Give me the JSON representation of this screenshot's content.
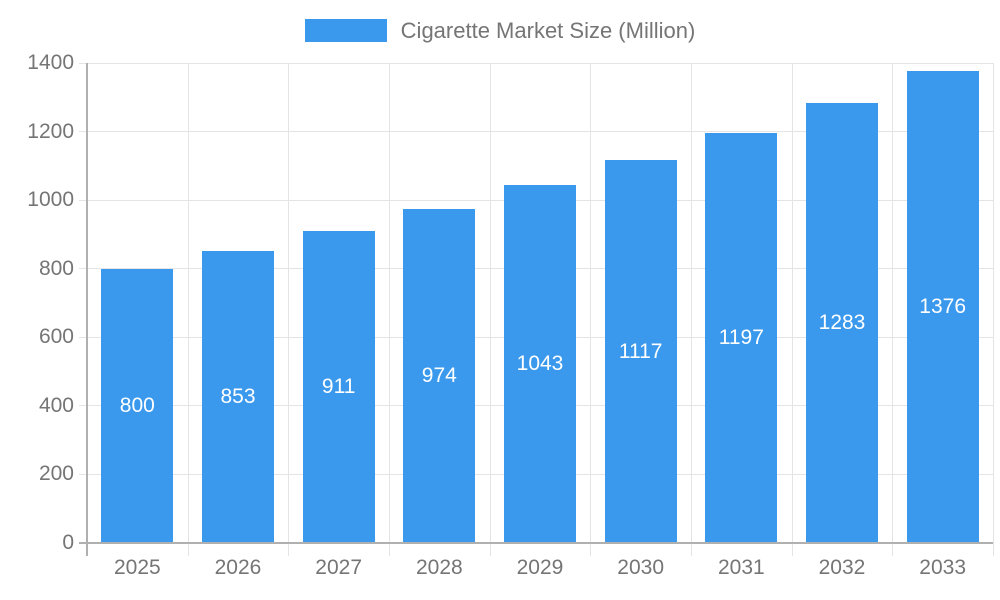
{
  "legend": {
    "label": "Cigarette Market Size (Million)"
  },
  "colors": {
    "bar": "#3B99ED",
    "bar_label": "#ffffff",
    "grid": "#e4e4e4",
    "axis": "#b0b0b0",
    "label": "#757575"
  },
  "chart_data": {
    "type": "bar",
    "title": "Cigarette Market Size (Million)",
    "categories": [
      "2025",
      "2026",
      "2027",
      "2028",
      "2029",
      "2030",
      "2031",
      "2032",
      "2033"
    ],
    "values": [
      800,
      853,
      911,
      974,
      1043,
      1117,
      1197,
      1283,
      1376
    ],
    "xlabel": "",
    "ylabel": "",
    "ylim": [
      0,
      1400
    ],
    "yticks": [
      0,
      200,
      400,
      600,
      800,
      1000,
      1200,
      1400
    ],
    "grid": true,
    "legend_position": "top",
    "data_labels": "inside-center"
  }
}
